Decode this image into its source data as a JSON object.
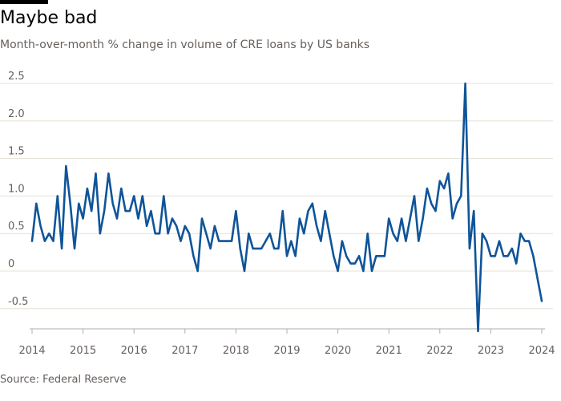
{
  "header": {
    "title": "Maybe bad",
    "subtitle": "Month-over-month % change in volume of CRE loans by US banks"
  },
  "footer": {
    "source": "Source: Federal Reserve"
  },
  "colors": {
    "line": "#0f5499",
    "grid": "#e6e0d6",
    "text": "#66605c"
  },
  "chart_data": {
    "type": "line",
    "title": "Maybe bad",
    "subtitle": "Month-over-month % change in volume of CRE loans by US banks",
    "xlabel": "",
    "ylabel": "",
    "ylim": [
      -0.8,
      2.5
    ],
    "grid": true,
    "x_ticks": [
      "2014",
      "2015",
      "2016",
      "2017",
      "2018",
      "2019",
      "2020",
      "2021",
      "2022",
      "2023",
      "2024"
    ],
    "y_ticks": [
      2.5,
      2.0,
      1.5,
      1.0,
      0.5,
      0,
      -0.5
    ],
    "y_tick_labels": [
      "2.5",
      "2.0",
      "1.5",
      "1.0",
      "0.5",
      "0",
      "-0.5"
    ],
    "x_start": "2014-01",
    "series": [
      {
        "values": [
          0.4,
          0.9,
          0.6,
          0.4,
          0.5,
          0.4,
          1.0,
          0.3,
          1.4,
          0.9,
          0.3,
          0.9,
          0.7,
          1.1,
          0.8,
          1.3,
          0.5,
          0.8,
          1.3,
          0.9,
          0.7,
          1.1,
          0.8,
          0.8,
          1.0,
          0.7,
          1.0,
          0.6,
          0.8,
          0.5,
          0.5,
          1.0,
          0.5,
          0.7,
          0.6,
          0.4,
          0.6,
          0.5,
          0.2,
          0.0,
          0.7,
          0.5,
          0.3,
          0.6,
          0.4,
          0.4,
          0.4,
          0.4,
          0.8,
          0.3,
          0.0,
          0.5,
          0.3,
          0.3,
          0.3,
          0.4,
          0.5,
          0.3,
          0.3,
          0.8,
          0.2,
          0.4,
          0.2,
          0.7,
          0.5,
          0.8,
          0.9,
          0.6,
          0.4,
          0.8,
          0.5,
          0.2,
          0.0,
          0.4,
          0.2,
          0.1,
          0.1,
          0.2,
          0.0,
          0.5,
          0.0,
          0.2,
          0.2,
          0.2,
          0.7,
          0.5,
          0.4,
          0.7,
          0.4,
          0.7,
          1.0,
          0.4,
          0.7,
          1.1,
          0.9,
          0.8,
          1.2,
          1.1,
          1.3,
          0.7,
          0.9,
          1.0,
          2.5,
          0.3,
          0.8,
          -0.8,
          0.5,
          0.4,
          0.2,
          0.2,
          0.4,
          0.2,
          0.2,
          0.3,
          0.1,
          0.5,
          0.4,
          0.4,
          0.2,
          -0.1,
          -0.4
        ]
      }
    ]
  }
}
